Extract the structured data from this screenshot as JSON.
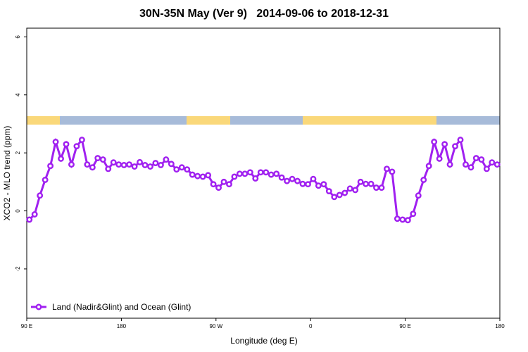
{
  "chart_data": {
    "type": "line",
    "title": "30N-35N May (Ver 9)   2014-09-06 to 2018-12-31",
    "xlabel": "Longitude (deg E)",
    "ylabel": "XCO2 - MLO trend (ppm)",
    "x": [
      92.5,
      97.5,
      102.5,
      107.5,
      112.5,
      117.5,
      122.5,
      127.5,
      132.5,
      137.5,
      142.5,
      147.5,
      152.5,
      157.5,
      162.5,
      167.5,
      172.5,
      177.5,
      182.5,
      187.5,
      192.5,
      197.5,
      202.5,
      207.5,
      212.5,
      217.5,
      222.5,
      227.5,
      232.5,
      237.5,
      242.5,
      247.5,
      252.5,
      257.5,
      262.5,
      267.5,
      272.5,
      277.5,
      282.5,
      287.5,
      292.5,
      297.5,
      302.5,
      307.5,
      312.5,
      317.5,
      322.5,
      327.5,
      332.5,
      337.5,
      342.5,
      347.5,
      352.5,
      357.5,
      362.5,
      367.5,
      372.5,
      377.5,
      382.5,
      387.5,
      392.5,
      397.5,
      402.5,
      407.5,
      412.5,
      417.5,
      422.5,
      427.5,
      432.5,
      437.5,
      442.5,
      447.5,
      452.5,
      457.5,
      462.5,
      467.5,
      472.5,
      477.5,
      482.5,
      487.5,
      492.5,
      497.5,
      502.5,
      507.5,
      512.5,
      517.5,
      522.5,
      527.5,
      532.5,
      537.5
    ],
    "series": [
      {
        "name": "Land (Nadir&Glint) and Ocean (Glint)",
        "color": "#a020f0",
        "values": [
          -0.3,
          -0.12,
          0.53,
          1.07,
          1.55,
          2.38,
          1.8,
          2.3,
          1.6,
          2.23,
          2.45,
          1.6,
          1.5,
          1.82,
          1.77,
          1.45,
          1.67,
          1.6,
          1.58,
          1.6,
          1.53,
          1.68,
          1.58,
          1.53,
          1.65,
          1.58,
          1.77,
          1.62,
          1.43,
          1.5,
          1.43,
          1.25,
          1.2,
          1.18,
          1.23,
          0.92,
          0.8,
          1.0,
          0.92,
          1.18,
          1.28,
          1.28,
          1.33,
          1.12,
          1.33,
          1.33,
          1.25,
          1.28,
          1.15,
          1.03,
          1.1,
          1.03,
          0.93,
          0.92,
          1.1,
          0.87,
          0.92,
          0.68,
          0.48,
          0.55,
          0.62,
          0.77,
          0.72,
          1.0,
          0.93,
          0.93,
          0.8,
          0.8,
          1.45,
          1.35,
          -0.27,
          -0.3,
          -0.32,
          -0.1,
          0.53,
          1.07,
          1.55,
          2.38,
          1.8,
          2.3,
          1.6,
          2.23,
          2.45,
          1.6,
          1.5,
          1.82,
          1.77,
          1.45,
          1.67,
          1.6
        ]
      }
    ],
    "xlim": [
      90,
      540
    ],
    "xticks": [
      {
        "value": 90,
        "label": "90 E"
      },
      180,
      {
        "value": 270,
        "label": "90 W"
      },
      {
        "value": 360,
        "label": "0"
      },
      {
        "value": 450,
        "label": "90 E"
      },
      {
        "value": 540,
        "label": "180"
      }
    ],
    "ylim": [
      -3.7,
      6.3
    ],
    "yticks": [
      -2,
      0,
      2,
      4,
      6
    ],
    "legend": "bottom-left"
  }
}
